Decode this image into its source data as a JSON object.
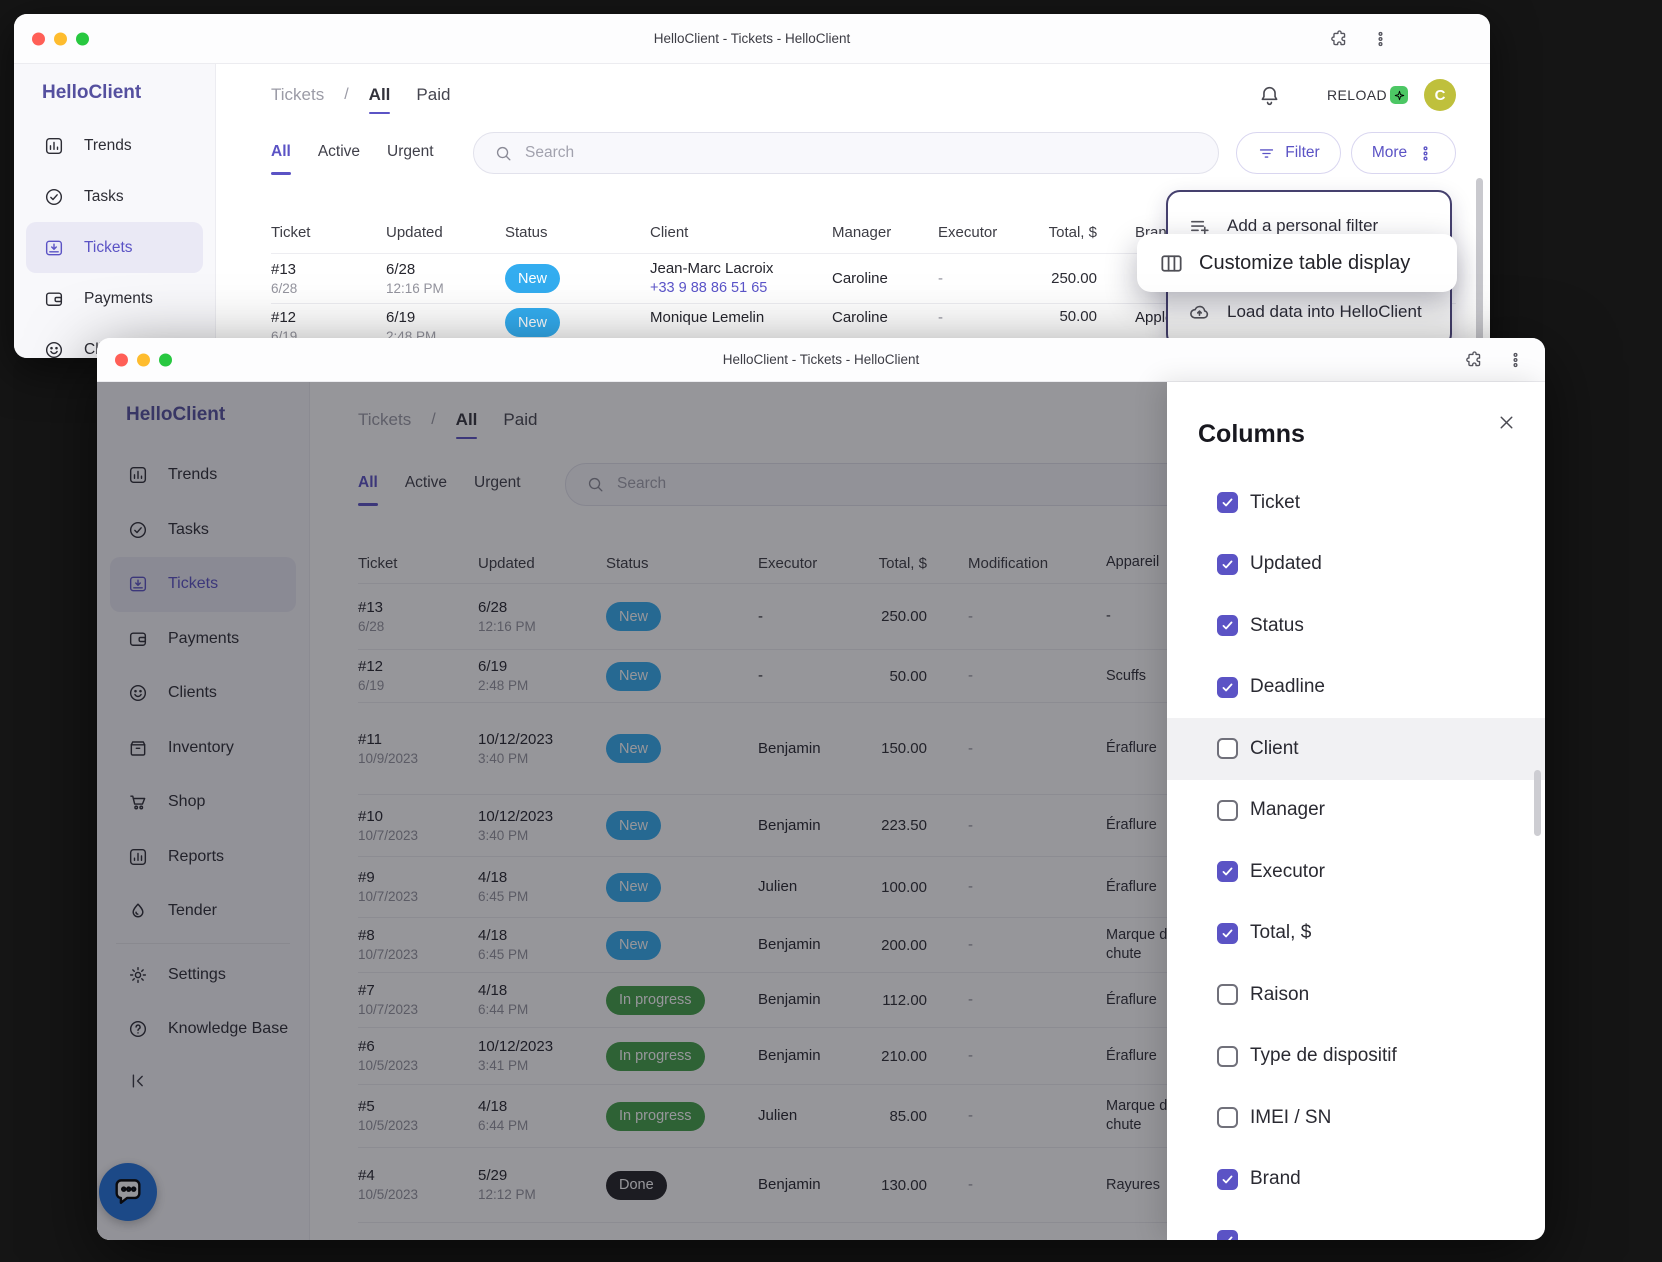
{
  "app": {
    "window_title": "HelloClient - Tickets - HelloClient",
    "brand": "HelloClient"
  },
  "colors": {
    "accent": "#5b53c5",
    "status_new": "#33adf0",
    "status_in_progress": "#43a047",
    "status_done": "#212126",
    "avatar_bg": "#bfc03c",
    "reload_badge": "#4cc764"
  },
  "back_window": {
    "breadcrumb": {
      "section": "Tickets",
      "separator": "/",
      "links": [
        "All",
        "Paid"
      ]
    },
    "sidebar_items": [
      {
        "label": "Trends",
        "icon": "trends-icon",
        "active": false
      },
      {
        "label": "Tasks",
        "icon": "tasks-icon",
        "active": false
      },
      {
        "label": "Tickets",
        "icon": "tickets-icon",
        "active": true
      },
      {
        "label": "Payments",
        "icon": "payments-icon",
        "active": false
      },
      {
        "label": "Clients",
        "icon": "clients-icon",
        "active": false
      }
    ],
    "tabs": [
      {
        "label": "All",
        "active": true
      },
      {
        "label": "Active",
        "active": false
      },
      {
        "label": "Urgent",
        "active": false
      }
    ],
    "search_placeholder": "Search",
    "actions": {
      "filter": "Filter",
      "more": "More",
      "reload": "RELOAD"
    },
    "avatar_letter": "C",
    "table": {
      "headers": [
        "Ticket",
        "Updated",
        "Status",
        "Client",
        "Manager",
        "Executor",
        "Total, $",
        "Brand"
      ],
      "rows": [
        {
          "id": "#13",
          "deadline": "6/28",
          "updated": "6/28",
          "time": "12:16 PM",
          "status": "New",
          "client": "Jean-Marc Lacroix",
          "phone": "+33 9 88 86 51 65",
          "manager": "Caroline",
          "executor": "-",
          "total": "250.00",
          "brand": ""
        },
        {
          "id": "#12",
          "deadline": "6/19",
          "updated": "6/19",
          "time": "2:48 PM",
          "status": "New",
          "client": "Monique Lemelin",
          "phone": "",
          "manager": "Caroline",
          "executor": "-",
          "total": "50.00",
          "brand": "Apple"
        }
      ]
    },
    "menu": {
      "add_filter": "Add a personal filter",
      "load_data": "Load data into HelloClient"
    },
    "callout": "Customize table display"
  },
  "front_window": {
    "breadcrumb": {
      "section": "Tickets",
      "separator": "/",
      "links": [
        "All",
        "Paid"
      ]
    },
    "sidebar_items": [
      {
        "label": "Trends",
        "icon": "trends-icon",
        "active": false
      },
      {
        "label": "Tasks",
        "icon": "tasks-icon",
        "active": false
      },
      {
        "label": "Tickets",
        "icon": "tickets-icon",
        "active": true
      },
      {
        "label": "Payments",
        "icon": "payments-icon",
        "active": false
      },
      {
        "label": "Clients",
        "icon": "clients-icon",
        "active": false
      },
      {
        "label": "Inventory",
        "icon": "inventory-icon",
        "active": false
      },
      {
        "label": "Shop",
        "icon": "shop-icon",
        "active": false
      },
      {
        "label": "Reports",
        "icon": "reports-icon",
        "active": false
      },
      {
        "label": "Tender",
        "icon": "tender-icon",
        "active": false
      }
    ],
    "sidebar_footer": [
      {
        "label": "Settings",
        "icon": "settings-icon",
        "active": false
      },
      {
        "label": "Knowledge Base",
        "icon": "help-icon",
        "active": false
      }
    ],
    "tabs": [
      {
        "label": "All",
        "active": true
      },
      {
        "label": "Active",
        "active": false
      },
      {
        "label": "Urgent",
        "active": false
      }
    ],
    "search_placeholder": "Search",
    "table": {
      "headers": [
        "Ticket",
        "Updated",
        "Status",
        "Executor",
        "Total, $",
        "Modification",
        "Appareil"
      ],
      "rows": [
        {
          "id": "#13",
          "deadline": "6/28",
          "updated": "6/28",
          "time": "12:16 PM",
          "status": "New",
          "executor": "-",
          "total": "250.00",
          "modification": "-",
          "device": "-"
        },
        {
          "id": "#12",
          "deadline": "6/19",
          "updated": "6/19",
          "time": "2:48 PM",
          "status": "New",
          "executor": "-",
          "total": "50.00",
          "modification": "-",
          "device": "Scuffs"
        },
        {
          "id": "#11",
          "deadline": "10/9/2023",
          "updated": "10/12/2023",
          "time": "3:40 PM",
          "status": "New",
          "executor": "Benjamin",
          "total": "150.00",
          "modification": "-",
          "device": "Éraflure"
        },
        {
          "id": "#10",
          "deadline": "10/7/2023",
          "updated": "10/12/2023",
          "time": "3:40 PM",
          "status": "New",
          "executor": "Benjamin",
          "total": "223.50",
          "modification": "-",
          "device": "Éraflure"
        },
        {
          "id": "#9",
          "deadline": "10/7/2023",
          "updated": "4/18",
          "time": "6:45 PM",
          "status": "New",
          "executor": "Julien",
          "total": "100.00",
          "modification": "-",
          "device": "Éraflure"
        },
        {
          "id": "#8",
          "deadline": "10/7/2023",
          "updated": "4/18",
          "time": "6:45 PM",
          "status": "New",
          "executor": "Benjamin",
          "total": "200.00",
          "modification": "-",
          "device": "Marque de chute"
        },
        {
          "id": "#7",
          "deadline": "10/7/2023",
          "updated": "4/18",
          "time": "6:44 PM",
          "status": "In progress",
          "executor": "Benjamin",
          "total": "112.00",
          "modification": "-",
          "device": "Éraflure"
        },
        {
          "id": "#6",
          "deadline": "10/5/2023",
          "updated": "10/12/2023",
          "time": "3:41 PM",
          "status": "In progress",
          "executor": "Benjamin",
          "total": "210.00",
          "modification": "-",
          "device": "Éraflure"
        },
        {
          "id": "#5",
          "deadline": "10/5/2023",
          "updated": "4/18",
          "time": "6:44 PM",
          "status": "In progress",
          "executor": "Julien",
          "total": "85.00",
          "modification": "-",
          "device": "Marque de chute"
        },
        {
          "id": "#4",
          "deadline": "10/5/2023",
          "updated": "5/29",
          "time": "12:12 PM",
          "status": "Done",
          "executor": "Benjamin",
          "total": "130.00",
          "modification": "-",
          "device": "Rayures"
        }
      ]
    },
    "columns_panel": {
      "title": "Columns",
      "items": [
        {
          "label": "Ticket",
          "checked": true
        },
        {
          "label": "Updated",
          "checked": true
        },
        {
          "label": "Status",
          "checked": true
        },
        {
          "label": "Deadline",
          "checked": true
        },
        {
          "label": "Client",
          "checked": false,
          "hover": true
        },
        {
          "label": "Manager",
          "checked": false
        },
        {
          "label": "Executor",
          "checked": true
        },
        {
          "label": "Total, $",
          "checked": true
        },
        {
          "label": "Raison",
          "checked": false
        },
        {
          "label": "Type de dispositif",
          "checked": false
        },
        {
          "label": "IMEI / SN",
          "checked": false
        },
        {
          "label": "Brand",
          "checked": true
        },
        {
          "label": "",
          "checked": true
        }
      ]
    }
  }
}
